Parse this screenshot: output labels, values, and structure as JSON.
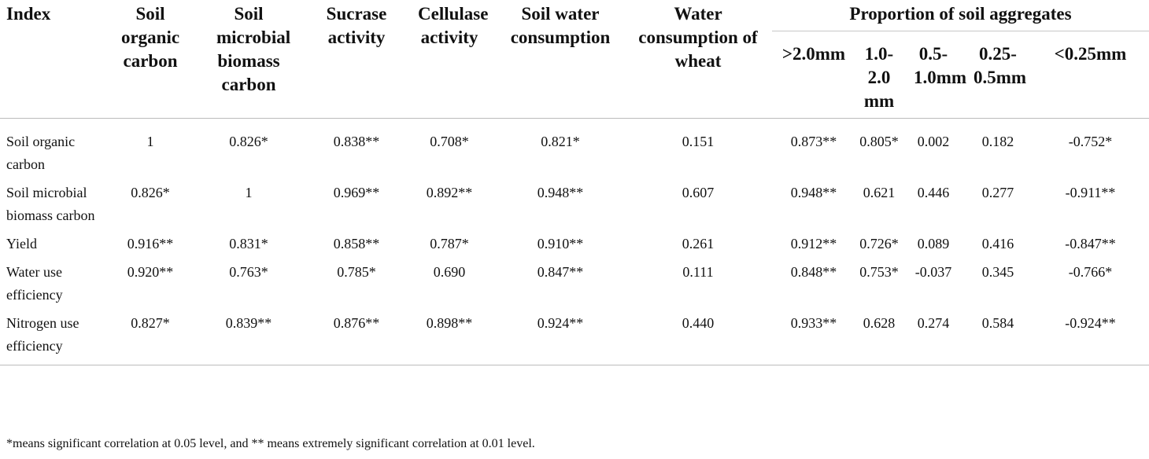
{
  "table": {
    "headers": {
      "index": "Index",
      "soil_organic_carbon": "Soil organic carbon",
      "soil_microbial_biomass_carbon": "Soil microbial biomass carbon",
      "sucrase_activity": "Sucrase activity",
      "cellulase_activity": "Cellulase activity",
      "soil_water_consumption": "Soil water consumption",
      "water_consumption_of_wheat": "Water consumption of wheat",
      "aggregates_group": "Proportion of soil aggregates",
      "aggregates": [
        ">2.0mm",
        "1.0-2.0 mm",
        "0.5-1.0mm",
        "0.25-0.5mm",
        "<0.25mm"
      ]
    },
    "rows": [
      {
        "label": "Soil organic carbon",
        "cells": [
          "1",
          "0.826*",
          "0.838**",
          "0.708*",
          "0.821*",
          "0.151",
          "0.873**",
          "0.805*",
          "0.002",
          "0.182",
          "-0.752*"
        ]
      },
      {
        "label": "Soil microbial biomass carbon",
        "cells": [
          "0.826*",
          "1",
          "0.969**",
          "0.892**",
          "0.948**",
          "0.607",
          "0.948**",
          "0.621",
          "0.446",
          "0.277",
          "-0.911**"
        ]
      },
      {
        "label": "Yield",
        "cells": [
          "0.916**",
          "0.831*",
          "0.858**",
          "0.787*",
          "0.910**",
          "0.261",
          "0.912**",
          "0.726*",
          "0.089",
          "0.416",
          "-0.847**"
        ]
      },
      {
        "label": "Water use efficiency",
        "cells": [
          "0.920**",
          "0.763*",
          "0.785*",
          "0.690",
          "0.847**",
          "0.111",
          "0.848**",
          "0.753*",
          "-0.037",
          "0.345",
          "-0.766*"
        ]
      },
      {
        "label": "Nitrogen use efficiency",
        "cells": [
          "0.827*",
          "0.839**",
          "0.876**",
          "0.898**",
          "0.924**",
          "0.440",
          "0.933**",
          "0.628",
          "0.274",
          "0.584",
          "-0.924**"
        ]
      }
    ]
  },
  "footnote": "*means significant correlation at 0.05 level, and ** means extremely significant correlation at 0.01 level."
}
